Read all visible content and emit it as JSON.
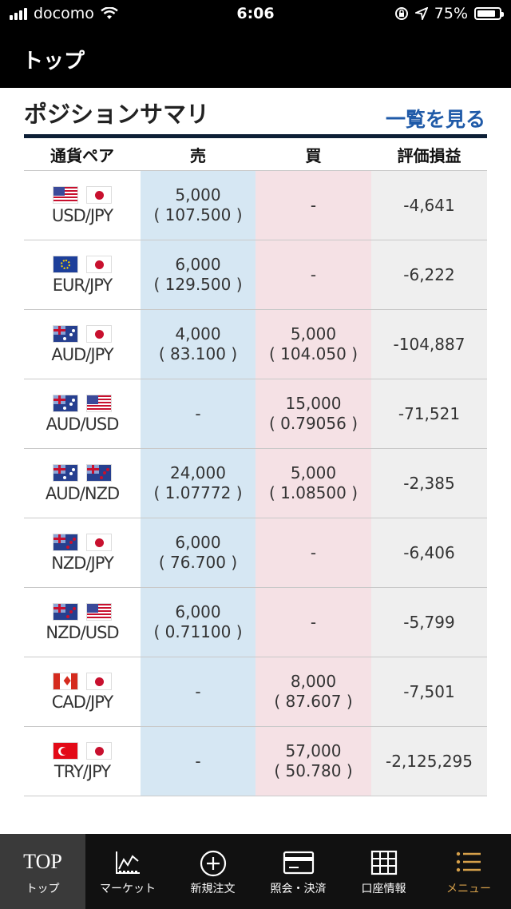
{
  "status_bar": {
    "carrier": "docomo",
    "time": "6:06",
    "battery": "75%"
  },
  "nav": {
    "title": "トップ"
  },
  "section": {
    "title": "ポジションサマリ",
    "view_all": "一覧を見る"
  },
  "table": {
    "headers": {
      "pair": "通貨ペア",
      "sell": "売",
      "buy": "買",
      "pl": "評価損益"
    },
    "rows": [
      {
        "flags": [
          "us-flag-icon",
          "jp-flag-icon"
        ],
        "pair": "USD/JPY",
        "sell_qty": "5,000",
        "sell_rate": "( 107.500 )",
        "buy_qty": "-",
        "buy_rate": "",
        "pl": "-4,641"
      },
      {
        "flags": [
          "eu-flag-icon",
          "jp-flag-icon"
        ],
        "pair": "EUR/JPY",
        "sell_qty": "6,000",
        "sell_rate": "( 129.500 )",
        "buy_qty": "-",
        "buy_rate": "",
        "pl": "-6,222"
      },
      {
        "flags": [
          "au-flag-icon",
          "jp-flag-icon"
        ],
        "pair": "AUD/JPY",
        "sell_qty": "4,000",
        "sell_rate": "( 83.100 )",
        "buy_qty": "5,000",
        "buy_rate": "( 104.050 )",
        "pl": "-104,887"
      },
      {
        "flags": [
          "au-flag-icon",
          "us-flag-icon"
        ],
        "pair": "AUD/USD",
        "sell_qty": "-",
        "sell_rate": "",
        "buy_qty": "15,000",
        "buy_rate": "( 0.79056 )",
        "pl": "-71,521"
      },
      {
        "flags": [
          "au-flag-icon",
          "nz-flag-icon"
        ],
        "pair": "AUD/NZD",
        "sell_qty": "24,000",
        "sell_rate": "( 1.07772 )",
        "buy_qty": "5,000",
        "buy_rate": "( 1.08500 )",
        "pl": "-2,385"
      },
      {
        "flags": [
          "nz-flag-icon",
          "jp-flag-icon"
        ],
        "pair": "NZD/JPY",
        "sell_qty": "6,000",
        "sell_rate": "( 76.700 )",
        "buy_qty": "-",
        "buy_rate": "",
        "pl": "-6,406"
      },
      {
        "flags": [
          "nz-flag-icon",
          "us-flag-icon"
        ],
        "pair": "NZD/USD",
        "sell_qty": "6,000",
        "sell_rate": "( 0.71100 )",
        "buy_qty": "-",
        "buy_rate": "",
        "pl": "-5,799"
      },
      {
        "flags": [
          "ca-flag-icon",
          "jp-flag-icon"
        ],
        "pair": "CAD/JPY",
        "sell_qty": "-",
        "sell_rate": "",
        "buy_qty": "8,000",
        "buy_rate": "( 87.607 )",
        "pl": "-7,501"
      },
      {
        "flags": [
          "tr-flag-icon",
          "jp-flag-icon"
        ],
        "pair": "TRY/JPY",
        "sell_qty": "-",
        "sell_rate": "",
        "buy_qty": "57,000",
        "buy_rate": "( 50.780 )",
        "pl": "-2,125,295"
      }
    ]
  },
  "bottom_nav": {
    "tabs": [
      {
        "icon_text": "TOP",
        "label": "トップ",
        "active": true
      },
      {
        "icon": "chart-icon",
        "label": "マーケット"
      },
      {
        "icon": "plus-circle-icon",
        "label": "新規注文"
      },
      {
        "icon": "card-icon",
        "label": "照会・決済"
      },
      {
        "icon": "grid-icon",
        "label": "口座情報"
      },
      {
        "icon": "menu-icon",
        "label": "メニュー"
      }
    ]
  },
  "colors": {
    "accent_link": "#1f5aa8",
    "sell_bg": "#d6e7f3",
    "buy_bg": "#f5e1e5",
    "menu_gold": "#d6a04a"
  }
}
